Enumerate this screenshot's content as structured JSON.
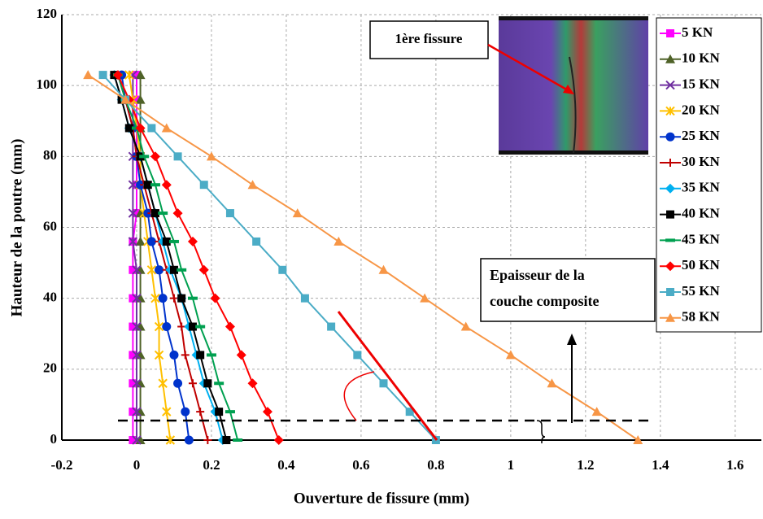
{
  "chart_data": {
    "type": "line",
    "xlabel": "Ouverture de fissure (mm)",
    "ylabel": "Hauteur de la poutre (mm)",
    "xlim": [
      -0.2,
      1.67
    ],
    "xticks": [
      -0.2,
      0,
      0.2,
      0.4,
      0.6,
      0.8,
      1,
      1.2,
      1.4,
      1.6
    ],
    "ylim": [
      0,
      120
    ],
    "yticks": [
      0,
      20,
      40,
      60,
      80,
      100,
      120
    ],
    "grid": true,
    "legend": "right",
    "y": [
      0,
      8,
      16,
      24,
      32,
      40,
      48,
      56,
      64,
      72,
      80,
      88,
      96,
      103
    ],
    "series": [
      {
        "name": "5 KN",
        "color": "#ff00ff",
        "marker": "square",
        "values": [
          -0.01,
          -0.01,
          -0.01,
          -0.01,
          -0.01,
          -0.01,
          -0.01,
          -0.01,
          0,
          0,
          0,
          0,
          0,
          0
        ]
      },
      {
        "name": "10 KN",
        "color": "#4f6228",
        "marker": "triangle",
        "values": [
          0.01,
          0.01,
          0.01,
          0.01,
          0.01,
          0.01,
          0.01,
          0.01,
          0.01,
          0.01,
          0.01,
          0.01,
          0.01,
          0.01
        ]
      },
      {
        "name": "15 KN",
        "color": "#7030a0",
        "marker": "cross",
        "values": [
          0,
          0,
          0,
          0,
          0,
          0,
          0,
          -0.01,
          -0.01,
          -0.01,
          -0.01,
          -0.01,
          -0.01,
          -0.01
        ]
      },
      {
        "name": "20 KN",
        "color": "#ffc000",
        "marker": "star",
        "values": [
          0.09,
          0.08,
          0.07,
          0.06,
          0.06,
          0.05,
          0.04,
          0.03,
          0.02,
          0.01,
          0.01,
          0,
          -0.01,
          -0.02
        ]
      },
      {
        "name": "25 KN",
        "color": "#0033cc",
        "marker": "circle",
        "values": [
          0.14,
          0.13,
          0.11,
          0.1,
          0.08,
          0.07,
          0.06,
          0.04,
          0.03,
          0.01,
          0,
          -0.01,
          -0.03,
          -0.04
        ]
      },
      {
        "name": "30 KN",
        "color": "#c00000",
        "marker": "plus",
        "values": [
          0.19,
          0.17,
          0.15,
          0.13,
          0.12,
          0.1,
          0.08,
          0.06,
          0.04,
          0.02,
          0,
          -0.01,
          -0.03,
          -0.05
        ]
      },
      {
        "name": "35 KN",
        "color": "#00b0f0",
        "marker": "diamond",
        "values": [
          0.23,
          0.21,
          0.18,
          0.16,
          0.14,
          0.12,
          0.09,
          0.07,
          0.05,
          0.03,
          0.01,
          -0.02,
          -0.04,
          -0.06
        ]
      },
      {
        "name": "40 KN",
        "color": "#000000",
        "marker": "square",
        "values": [
          0.24,
          0.22,
          0.19,
          0.17,
          0.15,
          0.12,
          0.1,
          0.08,
          0.05,
          0.03,
          0.01,
          -0.02,
          -0.04,
          -0.06
        ]
      },
      {
        "name": "45 KN",
        "color": "#00a050",
        "marker": "dash",
        "values": [
          0.27,
          0.25,
          0.22,
          0.2,
          0.17,
          0.15,
          0.12,
          0.1,
          0.07,
          0.05,
          0.02,
          0,
          -0.03,
          -0.05
        ]
      },
      {
        "name": "50 KN",
        "color": "#ff0000",
        "marker": "diamond",
        "values": [
          0.38,
          0.35,
          0.31,
          0.28,
          0.25,
          0.21,
          0.18,
          0.15,
          0.11,
          0.08,
          0.05,
          0.01,
          -0.02,
          -0.05
        ]
      },
      {
        "name": "55 KN",
        "color": "#4bacc6",
        "marker": "square",
        "values": [
          0.8,
          0.73,
          0.66,
          0.59,
          0.52,
          0.45,
          0.39,
          0.32,
          0.25,
          0.18,
          0.11,
          0.04,
          -0.03,
          -0.09
        ]
      },
      {
        "name": "58 KN",
        "color": "#f79646",
        "marker": "triangle",
        "values": [
          1.34,
          1.23,
          1.11,
          1.0,
          0.88,
          0.77,
          0.66,
          0.54,
          0.43,
          0.31,
          0.2,
          0.08,
          -0.03,
          -0.13
        ]
      }
    ],
    "annotations": [
      "1ère fissure",
      "Epaisseur de la",
      "couche composite"
    ]
  }
}
